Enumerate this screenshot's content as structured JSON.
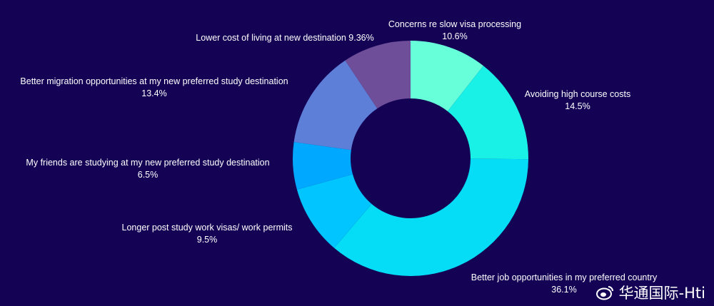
{
  "chart_data": {
    "type": "pie",
    "donut": true,
    "slices": [
      {
        "label": "Concerns re slow visa processing",
        "value": 10.6,
        "display": "10.6%",
        "color": "#66FFD9"
      },
      {
        "label": "Avoiding high course costs",
        "value": 14.5,
        "display": "14.5%",
        "color": "#19F0E6"
      },
      {
        "label": "Better job opportunities in my preferred country",
        "value": 36.1,
        "display": "36.1%",
        "color": "#05DDF7"
      },
      {
        "label": "Longer post study work visas/ work permits",
        "value": 9.5,
        "display": "9.5%",
        "color": "#00C5FE"
      },
      {
        "label": "My friends are studying at my new preferred study destination",
        "value": 6.5,
        "display": "6.5%",
        "color": "#00A8FF"
      },
      {
        "label": "Better migration opportunities at my new preferred study destination",
        "value": 13.4,
        "display": "13.4%",
        "color": "#5E7FD8"
      },
      {
        "label": "Lower cost of living at new destination",
        "value": 9.36,
        "display": "9.36%",
        "color": "#6E4E99"
      }
    ],
    "start": "12 o'clock",
    "direction": "clockwise"
  },
  "background_color": "#140255",
  "watermark": {
    "text": "华通国际-Hti",
    "icon": "weibo-icon"
  }
}
